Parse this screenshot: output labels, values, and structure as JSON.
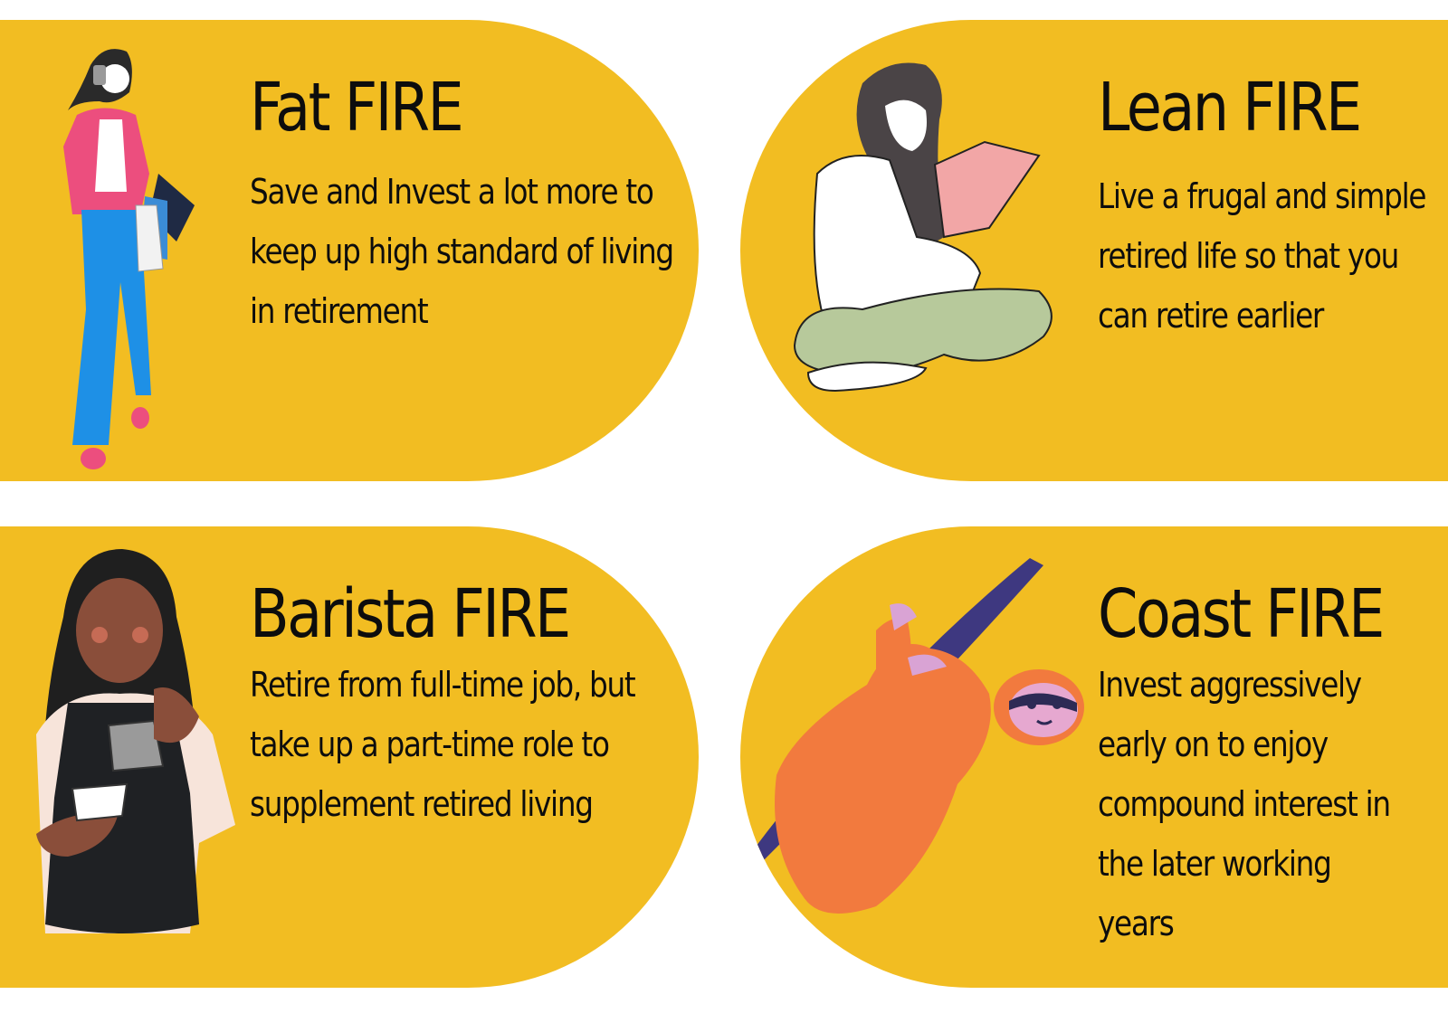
{
  "cards": {
    "fat": {
      "title": "Fat FIRE",
      "description": "Save and Invest a lot more to keep up high standard of living in retirement"
    },
    "lean": {
      "title": "Lean FIRE",
      "description": "Live a frugal and simple retired life so that you can retire earlier"
    },
    "barista": {
      "title": "Barista FIRE",
      "description": "Retire from full-time job, but take up a part-time role to supplement retired living"
    },
    "coast": {
      "title": "Coast FIRE",
      "description": "Invest aggressively early on to enjoy compound interest in the later working years"
    }
  },
  "colors": {
    "card": "#F2BD22",
    "text": "#0d0d0d",
    "sloth": "#F27A3E",
    "branch": "#3E3880"
  },
  "icons": [
    "shopping-woman-icon",
    "reading-woman-icon",
    "barista-woman-icon",
    "sloth-icon"
  ]
}
